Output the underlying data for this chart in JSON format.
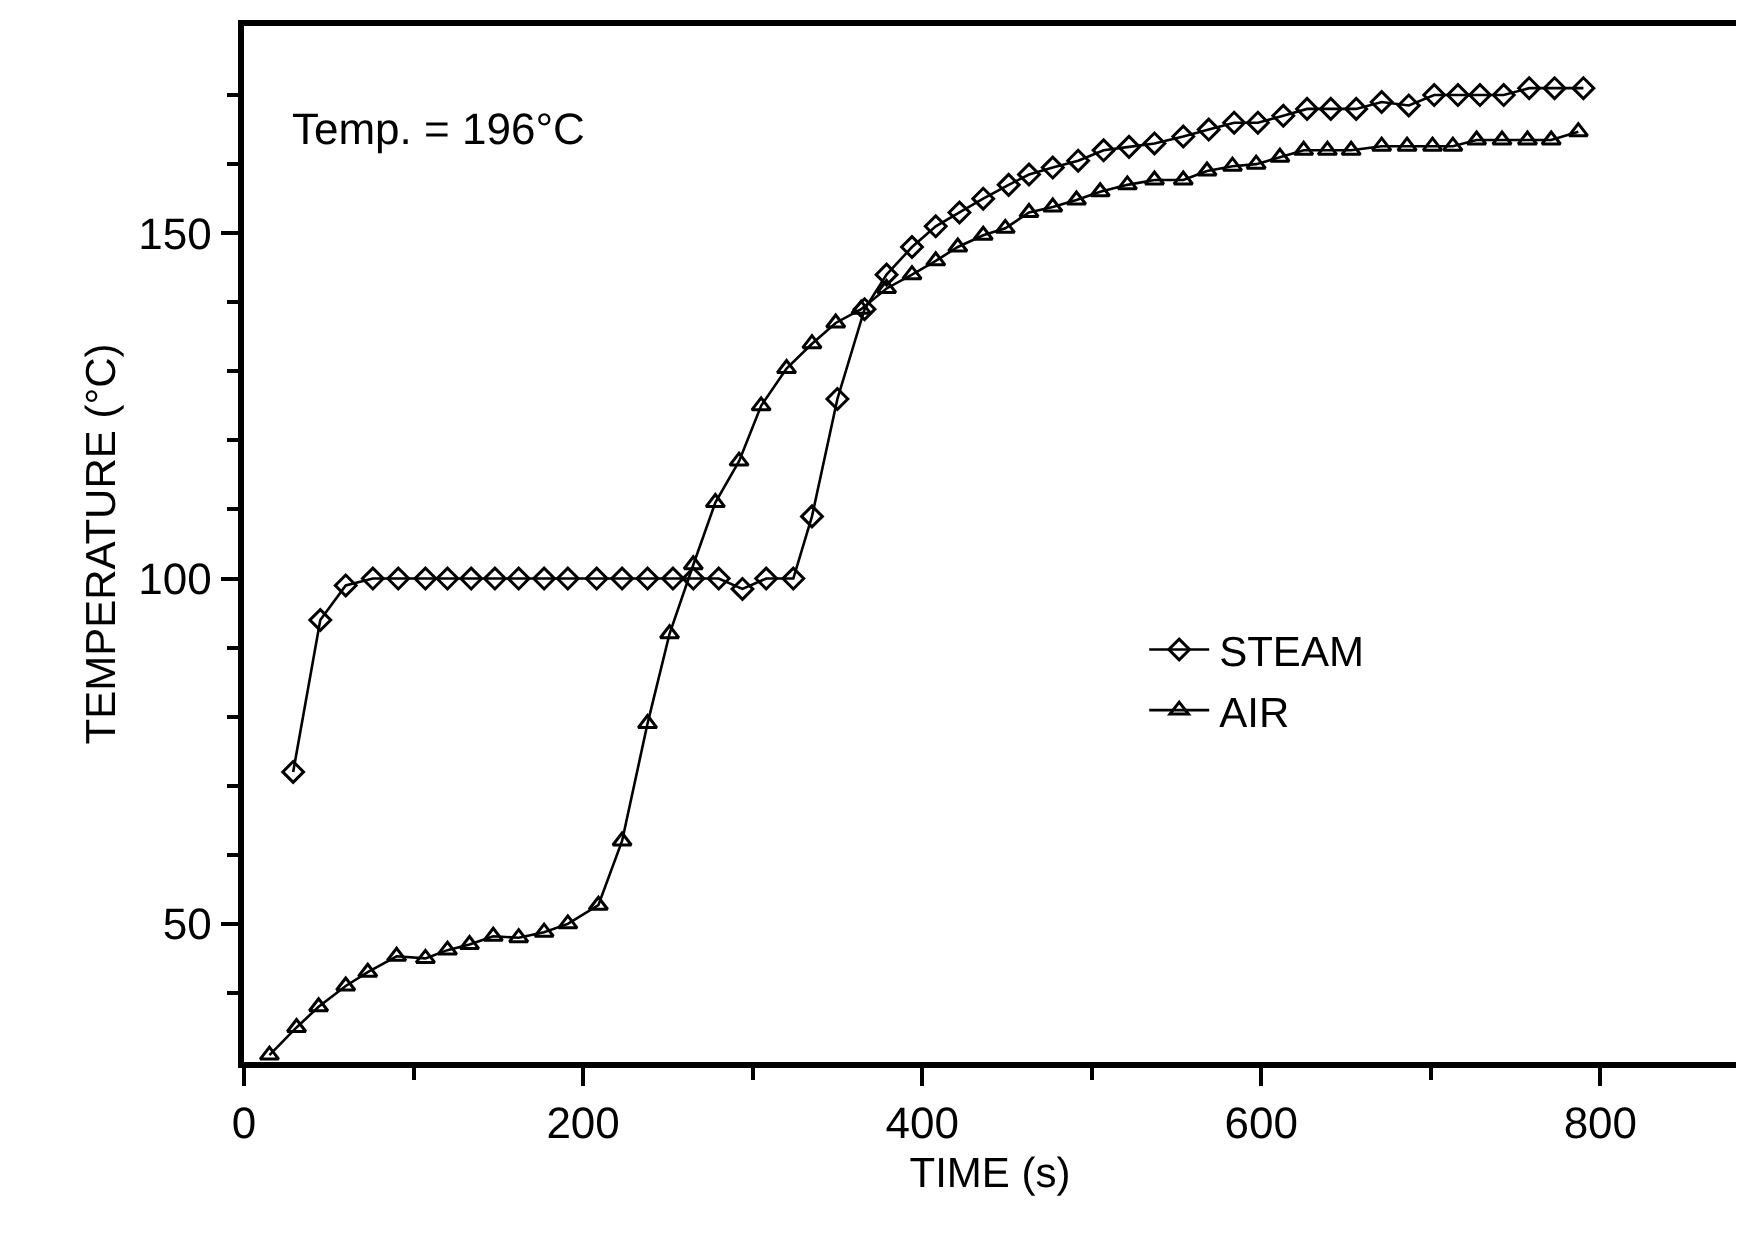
{
  "chart_data": {
    "type": "line",
    "xlabel": "TIME (s)",
    "ylabel": "TEMPERATURE (°C)",
    "annotations": [
      "Temp. = 196°C"
    ],
    "xlim": [
      0,
      880
    ],
    "xticks": [
      0,
      {
        "value": 100,
        "label": null
      },
      200,
      {
        "value": 300,
        "label": null
      },
      400,
      {
        "value": 500,
        "label": null
      },
      600,
      {
        "value": 700,
        "label": null
      },
      800
    ],
    "ylim": [
      30,
      180
    ],
    "yticks": [
      {
        "value": 40,
        "label": null
      },
      50,
      {
        "value": 60,
        "label": null
      },
      {
        "value": 70,
        "label": null
      },
      {
        "value": 80,
        "label": null
      },
      {
        "value": 90,
        "label": null
      },
      100,
      {
        "value": 110,
        "label": null
      },
      {
        "value": 120,
        "label": null
      },
      {
        "value": 130,
        "label": null
      },
      {
        "value": 140,
        "label": null
      },
      150,
      {
        "value": 160,
        "label": null
      },
      {
        "value": 170,
        "label": null
      }
    ],
    "grid": false,
    "legend": "bottom right",
    "line_style": "solid",
    "series": [
      {
        "name": "STEAM",
        "color": "#000000",
        "marker": "diamond",
        "x": [
          29,
          45,
          60,
          76,
          91,
          107,
          120,
          134,
          148,
          162,
          177,
          191,
          208,
          223,
          238,
          253,
          265,
          280,
          294,
          308,
          324,
          335,
          350,
          366,
          379,
          394,
          408,
          422,
          436,
          451,
          463,
          477,
          492,
          507,
          522,
          537,
          554,
          569,
          584,
          598,
          613,
          627,
          641,
          656,
          671,
          687,
          702,
          716,
          729,
          743,
          758,
          773,
          790
        ],
        "values": [
          72,
          94,
          99,
          100,
          100,
          100,
          100,
          100,
          100,
          100,
          100,
          100,
          100,
          100,
          100,
          100,
          100,
          100,
          98.5,
          100,
          100,
          109,
          126,
          139,
          144,
          148,
          151,
          153,
          155,
          157,
          158.5,
          159.5,
          160.5,
          162,
          162.5,
          163,
          164,
          165,
          166,
          166,
          167,
          168,
          168,
          168,
          169,
          168.5,
          170,
          170,
          170,
          170,
          171,
          171,
          171
        ]
      },
      {
        "name": "AIR",
        "color": "#000000",
        "marker": "triangle",
        "x": [
          15,
          31,
          44,
          60,
          73,
          90,
          107,
          120,
          133,
          147,
          162,
          177,
          191,
          209,
          223,
          238,
          251,
          265,
          278,
          292,
          305,
          320,
          335,
          349,
          364,
          379,
          394,
          408,
          421,
          436,
          449,
          463,
          477,
          491,
          505,
          521,
          537,
          554,
          568,
          583,
          597,
          611,
          625,
          639,
          653,
          671,
          686,
          701,
          713,
          727,
          742,
          757,
          771,
          787
        ],
        "values": [
          31,
          35,
          38,
          41,
          43,
          45.3,
          45,
          46.2,
          47,
          48.2,
          48,
          48.8,
          50,
          52.7,
          62,
          79,
          92,
          102,
          111,
          117,
          125,
          130.4,
          134,
          137,
          139,
          142,
          144,
          146,
          148,
          149.7,
          150.7,
          153,
          153.8,
          154.8,
          156,
          157,
          157.7,
          157.7,
          159,
          159.7,
          160,
          161,
          162,
          162,
          162,
          162.6,
          162.6,
          162.6,
          162.6,
          163.5,
          163.5,
          163.5,
          163.5,
          164.7
        ]
      }
    ]
  }
}
